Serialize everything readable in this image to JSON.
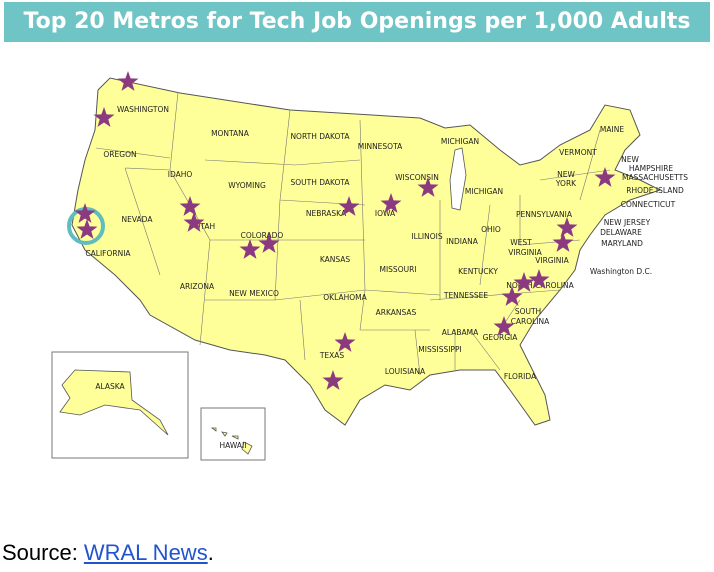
{
  "title": "Top 20 Metros for Tech Job Openings per 1,000 Adults",
  "state_labels": [
    "WASHINGTON",
    "MONTANA",
    "NORTH DAKOTA",
    "MINNESOTA",
    "MICHIGAN",
    "MAINE",
    "VERMONT",
    "NEW",
    "HAMPSHIRE",
    "MASSACHUSETTS",
    "OREGON",
    "IDAHO",
    "WYOMING",
    "SOUTH DAKOTA",
    "WISCONSIN",
    "MICHIGAN",
    "NEW",
    "YORK",
    "RHODE ISLAND",
    "CONNECTICUT",
    "NEVADA",
    "UTAH",
    "NEBRASKA",
    "IOWA",
    "PENNSYLVANIA",
    "NEW JERSEY",
    "DELAWARE",
    "OHIO",
    "INDIANA",
    "ILLINOIS",
    "MARYLAND",
    "COLORADO",
    "CALIFORNIA",
    "WEST",
    "VIRGINIA",
    "KANSAS",
    "MISSOURI",
    "VIRGINIA",
    "Washington D.C.",
    "KENTUCKY",
    "NORTH CAROLINA",
    "ARIZONA",
    "NEW MEXICO",
    "OKLAHOMA",
    "TENNESSEE",
    "ARKANSAS",
    "SOUTH",
    "CAROLINA",
    "ALABAMA",
    "GEORGIA",
    "MISSISSIPPI",
    "TEXAS",
    "LOUISIANA",
    "FLORIDA",
    "ALASKA",
    "HAWAII"
  ],
  "source": {
    "prefix": "Source:",
    "link": "WRAL News",
    "suffix": "."
  }
}
